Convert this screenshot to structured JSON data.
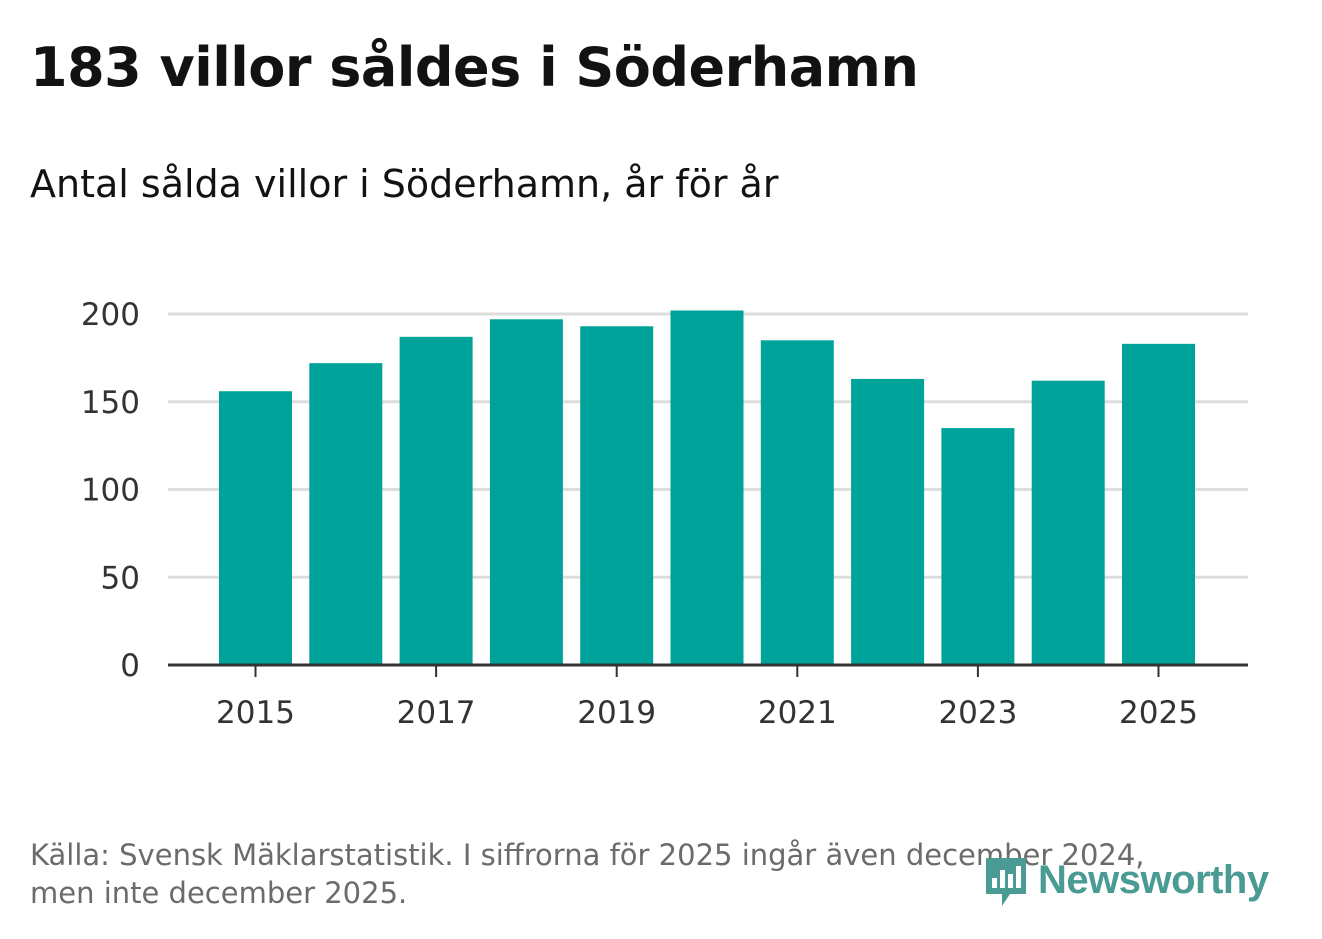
{
  "header": {
    "title": "183 villor såldes i Söderhamn",
    "subtitle": "Antal sålda villor i Söderhamn, år för år"
  },
  "footer": {
    "source_line1": "Källa: Svensk Mäklarstatistik. I siffrorna för 2025 ingår även december 2024,",
    "source_line2": "men inte december 2025."
  },
  "logo": {
    "text": "Newsworthy",
    "icon": "newsworthy-logo-icon",
    "color": "#4a9b94"
  },
  "colors": {
    "bar": "#00a39a",
    "grid": "#dddddd",
    "axis": "#333333"
  },
  "chart_data": {
    "type": "bar",
    "title": "183 villor såldes i Söderhamn",
    "subtitle": "Antal sålda villor i Söderhamn, år för år",
    "xlabel": "",
    "ylabel": "",
    "categories": [
      "2015",
      "2016",
      "2017",
      "2018",
      "2019",
      "2020",
      "2021",
      "2022",
      "2023",
      "2024",
      "2025"
    ],
    "values": [
      156,
      172,
      187,
      197,
      193,
      202,
      185,
      163,
      135,
      162,
      183
    ],
    "x_tick_labels": [
      "2015",
      "2017",
      "2019",
      "2021",
      "2023",
      "2025"
    ],
    "y_ticks": [
      0,
      50,
      100,
      150,
      200
    ],
    "ylim": [
      0,
      200
    ],
    "grid": true,
    "legend": "none"
  }
}
